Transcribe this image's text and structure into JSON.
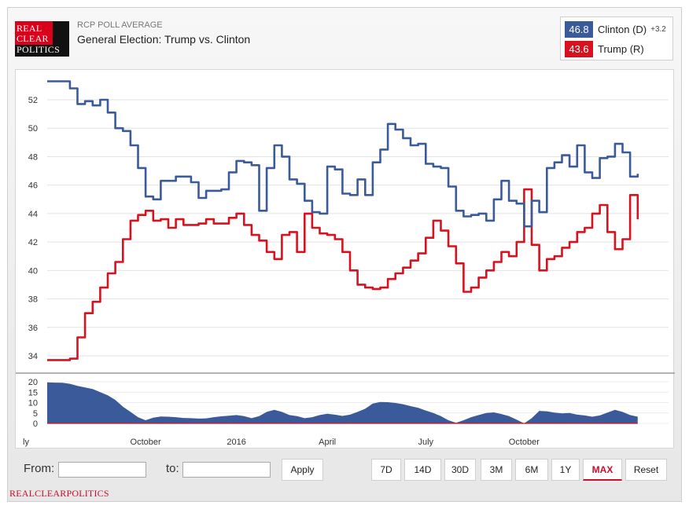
{
  "logo": {
    "line1": "REAL",
    "line2": "CLEAR",
    "line3": "POLITICS"
  },
  "header": {
    "kicker": "RCP POLL AVERAGE",
    "title": "General Election: Trump vs. Clinton"
  },
  "legend": {
    "clinton": {
      "value": "46.8",
      "name": "Clinton (D)",
      "spread": "+3.2",
      "color": "#3b5a9a"
    },
    "trump": {
      "value": "43.6",
      "name": "Trump (R)",
      "color": "#d8111f"
    }
  },
  "colors": {
    "clinton": "#3b5a9a",
    "trump": "#d8111f",
    "spread_area": "#3b5a9a"
  },
  "chart_data": {
    "type": "line",
    "x_tick_labels": [
      "ly",
      "October",
      "2016",
      "April",
      "July",
      "October"
    ],
    "ylim": [
      33,
      53.5
    ],
    "yticks": [
      34,
      36,
      38,
      40,
      42,
      44,
      46,
      48,
      50,
      52
    ],
    "grid": true,
    "x_unit": "weeks since early July 2015 (axis labels show months)",
    "series": [
      {
        "name": "Clinton (D)",
        "points": [
          [
            0,
            53.3
          ],
          [
            2,
            53.3
          ],
          [
            3,
            52.8
          ],
          [
            4,
            51.7
          ],
          [
            5,
            51.9
          ],
          [
            6,
            51.6
          ],
          [
            7,
            52.0
          ],
          [
            8,
            51.1
          ],
          [
            9,
            50.0
          ],
          [
            10,
            49.8
          ],
          [
            11,
            48.8
          ],
          [
            12,
            47.2
          ],
          [
            13,
            45.2
          ],
          [
            14,
            45.0
          ],
          [
            15,
            46.3
          ],
          [
            17,
            46.6
          ],
          [
            19,
            46.2
          ],
          [
            20,
            45.1
          ],
          [
            21,
            45.6
          ],
          [
            23,
            45.7
          ],
          [
            24,
            46.9
          ],
          [
            25,
            47.7
          ],
          [
            26,
            47.6
          ],
          [
            27,
            47.4
          ],
          [
            28,
            44.2
          ],
          [
            29,
            47.2
          ],
          [
            30,
            48.8
          ],
          [
            31,
            48.0
          ],
          [
            32,
            46.4
          ],
          [
            33,
            46.1
          ],
          [
            34,
            44.9
          ],
          [
            35,
            44.1
          ],
          [
            36,
            44.0
          ],
          [
            37,
            47.3
          ],
          [
            38,
            47.1
          ],
          [
            39,
            45.4
          ],
          [
            40,
            45.3
          ],
          [
            41,
            46.4
          ],
          [
            42,
            45.3
          ],
          [
            43,
            47.6
          ],
          [
            44,
            48.5
          ],
          [
            45,
            50.3
          ],
          [
            46,
            49.9
          ],
          [
            47,
            49.3
          ],
          [
            48,
            48.8
          ],
          [
            49,
            48.9
          ],
          [
            50,
            47.5
          ],
          [
            51,
            47.3
          ],
          [
            52,
            47.2
          ],
          [
            53,
            45.9
          ],
          [
            54,
            44.2
          ],
          [
            55,
            43.8
          ],
          [
            56,
            43.9
          ],
          [
            57,
            44.0
          ],
          [
            58,
            43.5
          ],
          [
            59,
            45.0
          ],
          [
            60,
            46.3
          ],
          [
            61,
            44.9
          ],
          [
            62,
            44.7
          ],
          [
            63,
            43.1
          ],
          [
            64,
            44.9
          ],
          [
            65,
            44.1
          ],
          [
            66,
            47.2
          ],
          [
            67,
            47.6
          ],
          [
            68,
            48.1
          ],
          [
            69,
            47.3
          ],
          [
            70,
            48.8
          ],
          [
            71,
            46.9
          ],
          [
            72,
            46.5
          ],
          [
            73,
            47.9
          ],
          [
            74,
            48.0
          ],
          [
            75,
            48.9
          ],
          [
            76,
            48.3
          ],
          [
            77,
            46.6
          ],
          [
            78,
            46.8
          ]
        ]
      },
      {
        "name": "Trump (R)",
        "points": [
          [
            0,
            33.7
          ],
          [
            2,
            33.7
          ],
          [
            3,
            33.8
          ],
          [
            4,
            35.3
          ],
          [
            5,
            37.0
          ],
          [
            6,
            37.8
          ],
          [
            7,
            38.8
          ],
          [
            8,
            39.8
          ],
          [
            9,
            40.6
          ],
          [
            10,
            42.2
          ],
          [
            11,
            43.5
          ],
          [
            12,
            43.9
          ],
          [
            13,
            44.2
          ],
          [
            14,
            43.5
          ],
          [
            15,
            43.6
          ],
          [
            16,
            43.0
          ],
          [
            17,
            43.6
          ],
          [
            18,
            43.2
          ],
          [
            19,
            43.2
          ],
          [
            20,
            43.3
          ],
          [
            21,
            43.6
          ],
          [
            22,
            43.3
          ],
          [
            23,
            43.3
          ],
          [
            24,
            43.7
          ],
          [
            25,
            44.0
          ],
          [
            26,
            43.2
          ],
          [
            27,
            42.5
          ],
          [
            28,
            42.1
          ],
          [
            29,
            41.3
          ],
          [
            30,
            40.8
          ],
          [
            31,
            42.5
          ],
          [
            32,
            42.7
          ],
          [
            33,
            41.3
          ],
          [
            34,
            44.0
          ],
          [
            35,
            43.0
          ],
          [
            36,
            42.6
          ],
          [
            37,
            42.5
          ],
          [
            38,
            42.2
          ],
          [
            39,
            41.3
          ],
          [
            40,
            40.0
          ],
          [
            41,
            39.0
          ],
          [
            42,
            38.8
          ],
          [
            43,
            38.7
          ],
          [
            44,
            38.8
          ],
          [
            45,
            39.4
          ],
          [
            46,
            39.8
          ],
          [
            47,
            40.2
          ],
          [
            48,
            40.7
          ],
          [
            49,
            41.2
          ],
          [
            50,
            42.3
          ],
          [
            51,
            43.5
          ],
          [
            52,
            42.8
          ],
          [
            53,
            41.7
          ],
          [
            54,
            40.5
          ],
          [
            55,
            38.5
          ],
          [
            56,
            38.8
          ],
          [
            57,
            39.5
          ],
          [
            58,
            40.0
          ],
          [
            59,
            40.6
          ],
          [
            60,
            41.3
          ],
          [
            61,
            41.0
          ],
          [
            62,
            42.0
          ],
          [
            63,
            45.7
          ],
          [
            64,
            41.8
          ],
          [
            65,
            40.0
          ],
          [
            66,
            40.8
          ],
          [
            67,
            41.0
          ],
          [
            68,
            41.6
          ],
          [
            69,
            42.0
          ],
          [
            70,
            42.7
          ],
          [
            71,
            43.0
          ],
          [
            72,
            44.0
          ],
          [
            73,
            44.6
          ],
          [
            74,
            42.7
          ],
          [
            75,
            41.5
          ],
          [
            76,
            42.2
          ],
          [
            77,
            45.3
          ],
          [
            78,
            43.6
          ]
        ]
      }
    ],
    "spread_panel": {
      "yticks": [
        0,
        5,
        10,
        15,
        20
      ],
      "ylim": [
        0,
        22
      ],
      "points": [
        [
          0,
          19.7
        ],
        [
          1,
          19.6
        ],
        [
          2,
          19.5
        ],
        [
          3,
          19.0
        ],
        [
          4,
          18.0
        ],
        [
          5,
          17.3
        ],
        [
          6,
          16.5
        ],
        [
          7,
          15.0
        ],
        [
          8,
          13.5
        ],
        [
          9,
          11.3
        ],
        [
          10,
          8.0
        ],
        [
          11,
          5.5
        ],
        [
          12,
          3.0
        ],
        [
          13,
          1.5
        ],
        [
          14,
          2.7
        ],
        [
          15,
          3.3
        ],
        [
          16,
          3.2
        ],
        [
          17,
          3.0
        ],
        [
          18,
          2.6
        ],
        [
          19,
          2.5
        ],
        [
          20,
          2.3
        ],
        [
          21,
          2.4
        ],
        [
          22,
          3.0
        ],
        [
          23,
          3.4
        ],
        [
          24,
          3.7
        ],
        [
          25,
          4.0
        ],
        [
          26,
          3.5
        ],
        [
          27,
          2.5
        ],
        [
          28,
          3.5
        ],
        [
          29,
          5.5
        ],
        [
          30,
          6.5
        ],
        [
          31,
          5.5
        ],
        [
          32,
          4.0
        ],
        [
          33,
          3.5
        ],
        [
          34,
          2.5
        ],
        [
          35,
          3.0
        ],
        [
          36,
          4.0
        ],
        [
          37,
          4.6
        ],
        [
          38,
          4.2
        ],
        [
          39,
          3.6
        ],
        [
          40,
          4.2
        ],
        [
          41,
          5.5
        ],
        [
          42,
          7.0
        ],
        [
          43,
          9.5
        ],
        [
          44,
          10.3
        ],
        [
          45,
          10.2
        ],
        [
          46,
          9.8
        ],
        [
          47,
          9.2
        ],
        [
          48,
          8.3
        ],
        [
          49,
          7.5
        ],
        [
          50,
          6.2
        ],
        [
          51,
          5.0
        ],
        [
          52,
          3.5
        ],
        [
          53,
          1.5
        ],
        [
          54,
          0.3
        ],
        [
          55,
          1.5
        ],
        [
          56,
          3.0
        ],
        [
          57,
          4.0
        ],
        [
          58,
          5.0
        ],
        [
          59,
          5.3
        ],
        [
          60,
          4.5
        ],
        [
          61,
          3.5
        ],
        [
          62,
          1.8
        ],
        [
          63,
          0.0
        ],
        [
          64,
          2.5
        ],
        [
          65,
          6.0
        ],
        [
          66,
          5.8
        ],
        [
          67,
          5.2
        ],
        [
          68,
          4.8
        ],
        [
          69,
          5.0
        ],
        [
          70,
          4.2
        ],
        [
          71,
          3.8
        ],
        [
          72,
          3.2
        ],
        [
          73,
          3.8
        ],
        [
          74,
          5.2
        ],
        [
          75,
          6.5
        ],
        [
          76,
          5.5
        ],
        [
          77,
          4.0
        ],
        [
          78,
          3.2
        ]
      ]
    }
  },
  "controls": {
    "from_label": "From:",
    "to_label": "to:",
    "from_value": "",
    "to_value": "",
    "apply_label": "Apply",
    "ranges": [
      "7D",
      "14D",
      "30D",
      "3M",
      "6M",
      "1Y",
      "MAX",
      "Reset"
    ],
    "active_range": "MAX"
  },
  "footer": {
    "brand": "REALCLEARPOLITICS"
  }
}
